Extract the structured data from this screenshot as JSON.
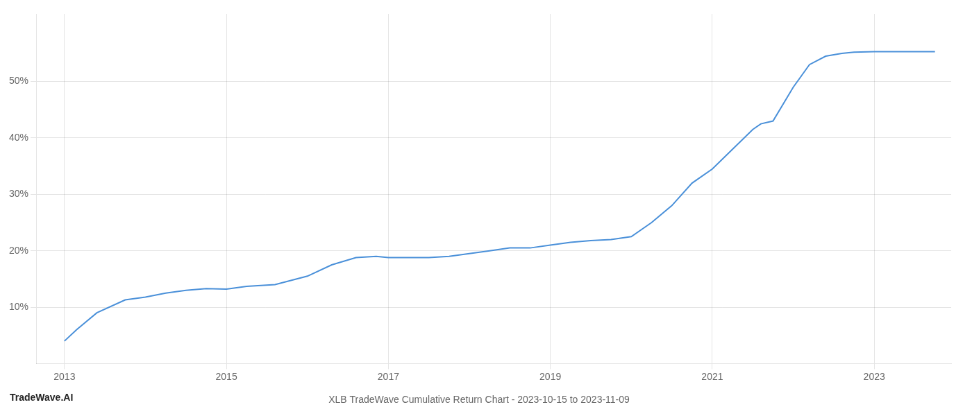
{
  "chart_data": {
    "type": "line",
    "title": "XLB TradeWave Cumulative Return Chart - 2023-10-15 to 2023-11-09",
    "annotations": [
      "TradeWave.AI"
    ],
    "x": [
      2013.0,
      2013.15,
      2013.4,
      2013.75,
      2014.0,
      2014.25,
      2014.5,
      2014.75,
      2015.0,
      2015.25,
      2015.6,
      2016.0,
      2016.3,
      2016.6,
      2016.85,
      2017.0,
      2017.25,
      2017.5,
      2017.75,
      2018.0,
      2018.25,
      2018.5,
      2018.75,
      2019.0,
      2019.25,
      2019.5,
      2019.75,
      2020.0,
      2020.25,
      2020.5,
      2020.75,
      2021.0,
      2021.25,
      2021.5,
      2021.6,
      2021.75,
      2022.0,
      2022.1,
      2022.2,
      2022.4,
      2022.6,
      2022.75,
      2023.0,
      2023.75
    ],
    "values": [
      0.04,
      0.06,
      0.09,
      0.113,
      0.118,
      0.125,
      0.13,
      0.133,
      0.132,
      0.137,
      0.14,
      0.155,
      0.175,
      0.188,
      0.19,
      0.188,
      0.188,
      0.188,
      0.19,
      0.195,
      0.2,
      0.205,
      0.205,
      0.21,
      0.215,
      0.218,
      0.22,
      0.225,
      0.25,
      0.28,
      0.32,
      0.345,
      0.38,
      0.415,
      0.425,
      0.43,
      0.49,
      0.51,
      0.53,
      0.545,
      0.55,
      0.552,
      0.553,
      0.553
    ],
    "color": "#4a90d9",
    "xlim": [
      2012.65,
      2023.95
    ],
    "ylim": [
      0.0,
      0.62
    ],
    "xticks": [
      2013,
      2015,
      2017,
      2019,
      2021,
      2023
    ],
    "yticks": [
      {
        "value": 0.1,
        "label": "10%"
      },
      {
        "value": 0.2,
        "label": "20%"
      },
      {
        "value": 0.3,
        "label": "30%"
      },
      {
        "value": 0.4,
        "label": "40%"
      },
      {
        "value": 0.5,
        "label": "50%"
      }
    ],
    "grid": true
  }
}
